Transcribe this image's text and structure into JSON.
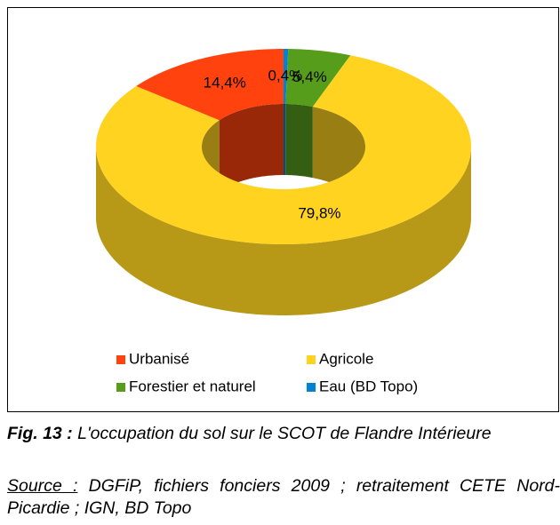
{
  "chart_data": {
    "type": "donut3d",
    "categories": [
      "Urbanisé",
      "Agricole",
      "Forestier et naturel",
      "Eau (BD Topo)"
    ],
    "values": [
      14.4,
      79.8,
      5.4,
      0.4
    ],
    "value_labels": [
      "14,4%",
      "79,8%",
      "5,4%",
      "0,4%"
    ],
    "colors": [
      "#ff420e",
      "#ffd320",
      "#579d1c",
      "#0084d1"
    ],
    "legend": "bottom"
  },
  "caption": {
    "label": "Fig. 13 :",
    "text": "L'occupation du sol sur le SCOT de Flandre Intérieure"
  },
  "source": {
    "label": "Source :",
    "text": "DGFiP, fichiers fonciers 2009 ; retraitement CETE Nord-Picardie ; IGN, BD Topo"
  }
}
